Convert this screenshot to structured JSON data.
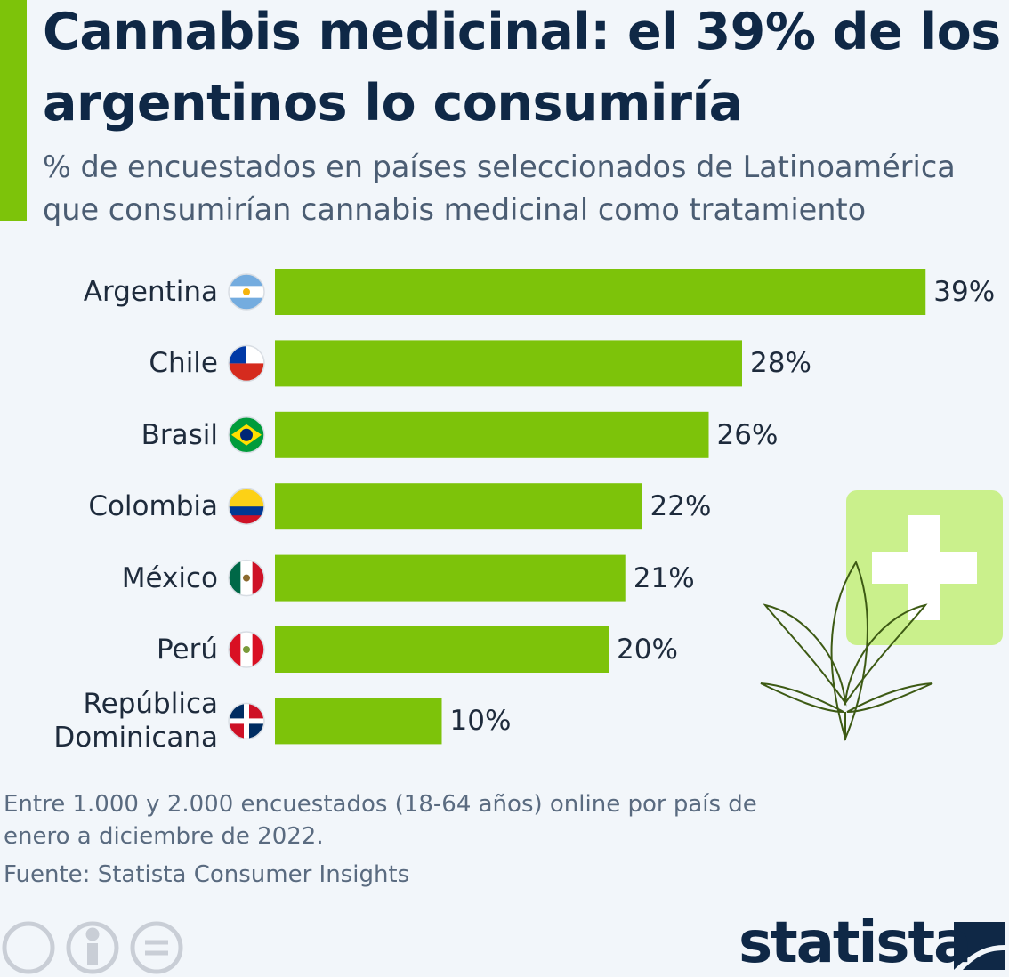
{
  "chart_data": {
    "type": "bar",
    "orientation": "horizontal",
    "title": "Cannabis medicinal: el 39% de los argentinos lo consumiría",
    "subtitle": "% de encuestados en países seleccionados de Latinoamérica que consumirían cannabis medicinal como tratamiento",
    "categories": [
      "Argentina",
      "Chile",
      "Brasil",
      "Colombia",
      "México",
      "Perú",
      "República Dominicana"
    ],
    "values": [
      39,
      28,
      26,
      22,
      21,
      20,
      10
    ],
    "value_labels": [
      "39%",
      "28%",
      "26%",
      "22%",
      "21%",
      "20%",
      "10%"
    ],
    "color": "#7dc30a",
    "note": "Entre 1.000 y 2.000 encuestados (18-64 años) online por país de enero a diciembre de 2022.",
    "source": "Fuente: Statista Consumer Insights",
    "logo": "statista"
  }
}
